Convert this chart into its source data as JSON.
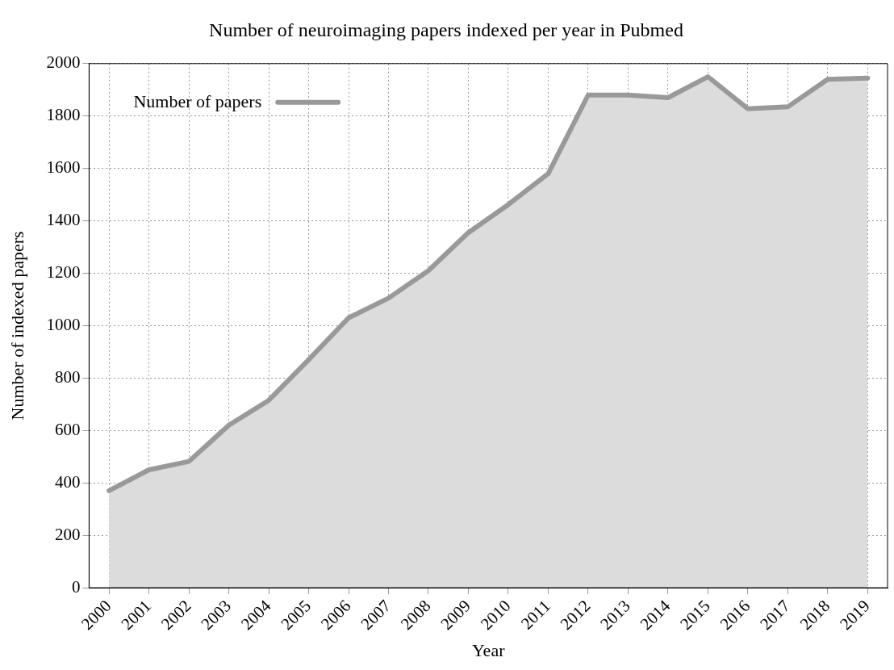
{
  "chart_data": {
    "type": "area",
    "title": "Number of neuroimaging papers indexed per year in Pubmed",
    "xlabel": "Year",
    "ylabel": "Number of indexed papers",
    "categories": [
      "2000",
      "2001",
      "2002",
      "2003",
      "2004",
      "2005",
      "2006",
      "2007",
      "2008",
      "2009",
      "2010",
      "2011",
      "2012",
      "2013",
      "2014",
      "2015",
      "2016",
      "2017",
      "2018",
      "2019"
    ],
    "series": [
      {
        "name": "Number of papers",
        "color": "#999999",
        "values": [
          370,
          450,
          482,
          620,
          715,
          870,
          1030,
          1105,
          1210,
          1355,
          1462,
          1580,
          1880,
          1880,
          1870,
          1950,
          1828,
          1835,
          1940,
          1945
        ]
      }
    ],
    "ylim": [
      0,
      2000
    ],
    "yticks": [
      0,
      200,
      400,
      600,
      800,
      1000,
      1200,
      1400,
      1600,
      1800,
      2000
    ],
    "grid": true,
    "legend": "top left"
  }
}
